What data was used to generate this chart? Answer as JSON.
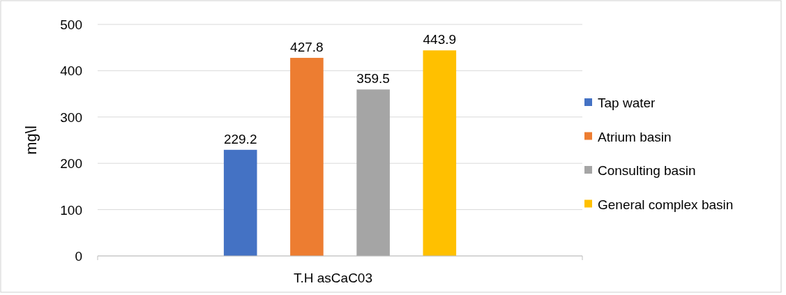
{
  "chart_data": {
    "type": "bar",
    "ylabel": "mg\\l",
    "categories": [
      "T.H asCaC03"
    ],
    "series": [
      {
        "name": "Tap water",
        "color": "#4472c4",
        "values": [
          229.2
        ]
      },
      {
        "name": "Atrium basin",
        "color": "#ed7d31",
        "values": [
          427.8
        ]
      },
      {
        "name": "Consulting basin",
        "color": "#a5a5a5",
        "values": [
          359.5
        ]
      },
      {
        "name": "General complex basin",
        "color": "#ffc000",
        "values": [
          443.9
        ]
      }
    ],
    "ylim": [
      0,
      500
    ],
    "yticks": [
      0,
      100,
      200,
      300,
      400,
      500
    ],
    "grid": "y",
    "legend": "right",
    "data_labels": true
  }
}
